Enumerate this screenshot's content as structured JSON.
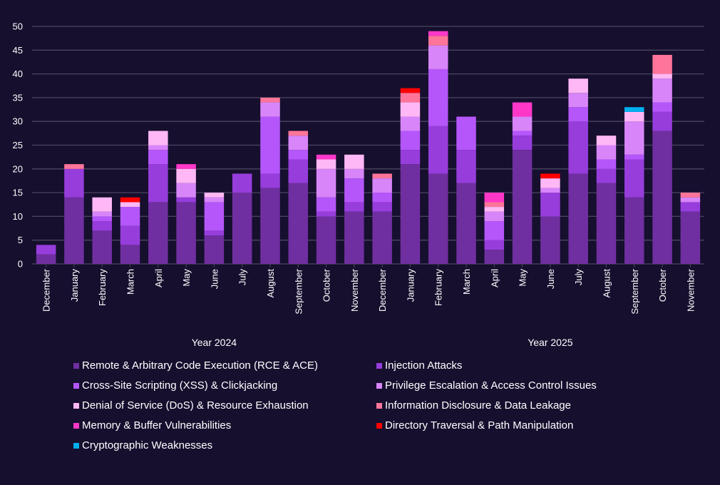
{
  "chart_data": {
    "type": "bar",
    "stacked": true,
    "title": "",
    "xlabel": "",
    "ylabel": "",
    "ylim": [
      0,
      50
    ],
    "yticks": [
      0,
      5,
      10,
      15,
      20,
      25,
      30,
      35,
      40,
      45,
      50
    ],
    "grid": true,
    "legend_position": "bottom",
    "categories": [
      "December",
      "January",
      "February",
      "March",
      "April",
      "May",
      "June",
      "July",
      "August",
      "September",
      "October",
      "November",
      "December",
      "January",
      "February",
      "March",
      "April",
      "May",
      "June",
      "July",
      "August",
      "September",
      "October",
      "November"
    ],
    "groups": [
      {
        "label": "Year 2024",
        "start": 0,
        "end": 12
      },
      {
        "label": "Year 2025",
        "start": 13,
        "end": 23
      }
    ],
    "series": [
      {
        "name": "Remote & Arbitrary Code Execution (RCE & ACE)",
        "color": "#6f2fa0",
        "values": [
          2,
          14,
          7,
          4,
          13,
          13,
          6,
          15,
          16,
          17,
          10,
          11,
          11,
          21,
          19,
          17,
          3,
          24,
          10,
          19,
          17,
          14,
          28,
          11
        ]
      },
      {
        "name": "Injection Attacks",
        "color": "#973ddc",
        "values": [
          2,
          6,
          2,
          4,
          8,
          1,
          1,
          4,
          3,
          5,
          1,
          2,
          2,
          3,
          10,
          7,
          2,
          3,
          5,
          11,
          3,
          8,
          4,
          2
        ]
      },
      {
        "name": "Cross-Site Scripting (XSS) & Clickjacking",
        "color": "#b556fb",
        "values": [
          0,
          0,
          1,
          4,
          3,
          0,
          6,
          0,
          12,
          2,
          3,
          5,
          2,
          4,
          12,
          7,
          4,
          1,
          0,
          3,
          2,
          1,
          2,
          0
        ]
      },
      {
        "name": "Privilege Escalation & Access Control Issues",
        "color": "#d885f9",
        "values": [
          0,
          0,
          1,
          0,
          1,
          3,
          1,
          0,
          3,
          3,
          6,
          2,
          3,
          3,
          5,
          0,
          2,
          3,
          1,
          3,
          3,
          7,
          5,
          1
        ]
      },
      {
        "name": "Denial of Service (DoS) & Resource Exhaustion",
        "color": "#ffb8f5",
        "values": [
          0,
          0,
          3,
          1,
          3,
          3,
          1,
          0,
          0,
          0,
          2,
          3,
          0,
          3,
          0,
          0,
          1,
          0,
          2,
          3,
          2,
          2,
          1,
          0
        ]
      },
      {
        "name": "Information Disclosure & Data Leakage",
        "color": "#ff7599",
        "values": [
          0,
          1,
          0,
          0,
          0,
          0,
          0,
          0,
          1,
          1,
          0,
          0,
          1,
          2,
          2,
          0,
          1,
          0,
          0,
          0,
          0,
          0,
          4,
          1
        ]
      },
      {
        "name": "Memory & Buffer Vulnerabilities",
        "color": "#ff37c8",
        "values": [
          0,
          0,
          0,
          0,
          0,
          1,
          0,
          0,
          0,
          0,
          1,
          0,
          0,
          0,
          1,
          0,
          2,
          3,
          0,
          0,
          0,
          0,
          0,
          0
        ]
      },
      {
        "name": "Directory Traversal & Path Manipulation",
        "color": "#ff0000",
        "values": [
          0,
          0,
          0,
          1,
          0,
          0,
          0,
          0,
          0,
          0,
          0,
          0,
          0,
          1,
          0,
          0,
          0,
          0,
          1,
          0,
          0,
          0,
          0,
          0
        ]
      },
      {
        "name": "Cryptographic Weaknesses",
        "color": "#00b0f0",
        "values": [
          0,
          0,
          0,
          0,
          0,
          0,
          0,
          0,
          0,
          0,
          0,
          0,
          0,
          0,
          0,
          0,
          0,
          0,
          0,
          0,
          0,
          1,
          0,
          0
        ]
      }
    ]
  },
  "colors": {
    "background": "#160f2e",
    "gridline": "#4a4660",
    "text": "#ffffff"
  }
}
